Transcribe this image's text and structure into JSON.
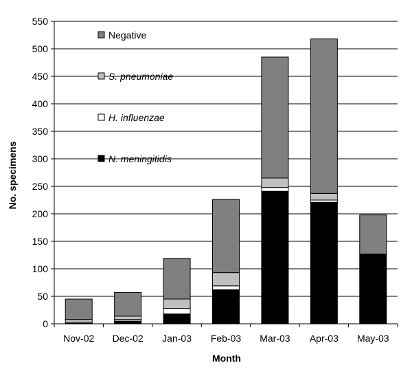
{
  "chart_data": {
    "type": "bar",
    "stacked": true,
    "title": "",
    "xlabel": "Month",
    "ylabel": "No. specimens",
    "ylim": [
      0,
      550
    ],
    "yticks": [
      0,
      50,
      100,
      150,
      200,
      250,
      300,
      350,
      400,
      450,
      500,
      550
    ],
    "grid": true,
    "legend_position": "top-left",
    "categories": [
      "Nov-02",
      "Dec-02",
      "Jan-03",
      "Feb-03",
      "Mar-03",
      "Apr-03",
      "May-03"
    ],
    "series": [
      {
        "name": "N. meningitidis",
        "italic": true,
        "color": "#000000",
        "values": [
          1,
          5,
          18,
          62,
          241,
          221,
          127
        ]
      },
      {
        "name": "H. influenzae",
        "italic": true,
        "color": "#ffffff",
        "values": [
          2,
          3,
          10,
          7,
          7,
          4,
          0
        ]
      },
      {
        "name": "S. pneumoniae",
        "italic": true,
        "color": "#c0c0c0",
        "values": [
          5,
          6,
          17,
          24,
          17,
          12,
          0
        ]
      },
      {
        "name": "Negative",
        "italic": false,
        "color": "#808080",
        "values": [
          37,
          43,
          74,
          133,
          220,
          281,
          71
        ]
      }
    ],
    "legend_order": [
      "Negative",
      "S. pneumoniae",
      "H. influenzae",
      "N. meningitidis"
    ]
  }
}
